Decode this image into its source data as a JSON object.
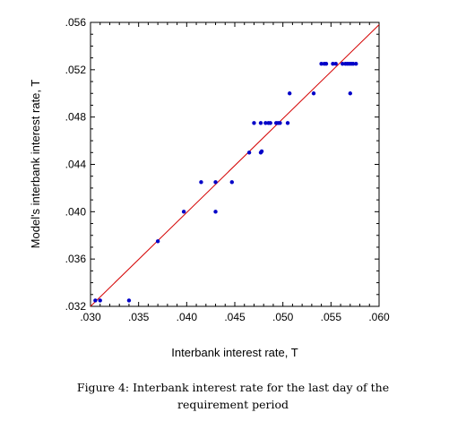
{
  "chart_data": {
    "type": "scatter",
    "xlabel": "Interbank interest rate, T",
    "ylabel": "Model's interbank interest rate, T",
    "xlim": [
      0.03,
      0.06
    ],
    "ylim": [
      0.032,
      0.056
    ],
    "x_ticks": [
      ".030",
      ".035",
      ".040",
      ".045",
      ".050",
      ".055",
      ".060"
    ],
    "y_ticks": [
      ".032",
      ".036",
      ".040",
      ".044",
      ".048",
      ".052",
      ".056"
    ],
    "grid": false,
    "point_color": "#0000c8",
    "line_color": "#d40000",
    "reference_line": {
      "x": [
        0.03,
        0.06
      ],
      "y": [
        0.032,
        0.0558
      ]
    },
    "series": [
      {
        "points": [
          [
            0.0305,
            0.0325
          ],
          [
            0.031,
            0.0325
          ],
          [
            0.034,
            0.0325
          ],
          [
            0.037,
            0.0375
          ],
          [
            0.0397,
            0.04
          ],
          [
            0.043,
            0.04
          ],
          [
            0.0415,
            0.0425
          ],
          [
            0.043,
            0.0425
          ],
          [
            0.0447,
            0.0425
          ],
          [
            0.0465,
            0.045
          ],
          [
            0.0477,
            0.045
          ],
          [
            0.0478,
            0.0451
          ],
          [
            0.047,
            0.0475
          ],
          [
            0.0477,
            0.0475
          ],
          [
            0.0482,
            0.0475
          ],
          [
            0.0485,
            0.0475
          ],
          [
            0.0487,
            0.0475
          ],
          [
            0.0493,
            0.0475
          ],
          [
            0.0495,
            0.0475
          ],
          [
            0.0497,
            0.0475
          ],
          [
            0.0505,
            0.0475
          ],
          [
            0.0507,
            0.05
          ],
          [
            0.0532,
            0.05
          ],
          [
            0.057,
            0.05
          ],
          [
            0.054,
            0.0525
          ],
          [
            0.0543,
            0.0525
          ],
          [
            0.0545,
            0.0525
          ],
          [
            0.0552,
            0.0525
          ],
          [
            0.0555,
            0.0525
          ],
          [
            0.0562,
            0.0525
          ],
          [
            0.0565,
            0.0525
          ],
          [
            0.0567,
            0.0525
          ],
          [
            0.0569,
            0.0525
          ],
          [
            0.0571,
            0.0525
          ],
          [
            0.0573,
            0.0525
          ],
          [
            0.0576,
            0.0525
          ]
        ]
      }
    ]
  },
  "caption": {
    "line1": "Figure 4: Interbank interest rate for the last day of the",
    "line2": "requirement period"
  }
}
